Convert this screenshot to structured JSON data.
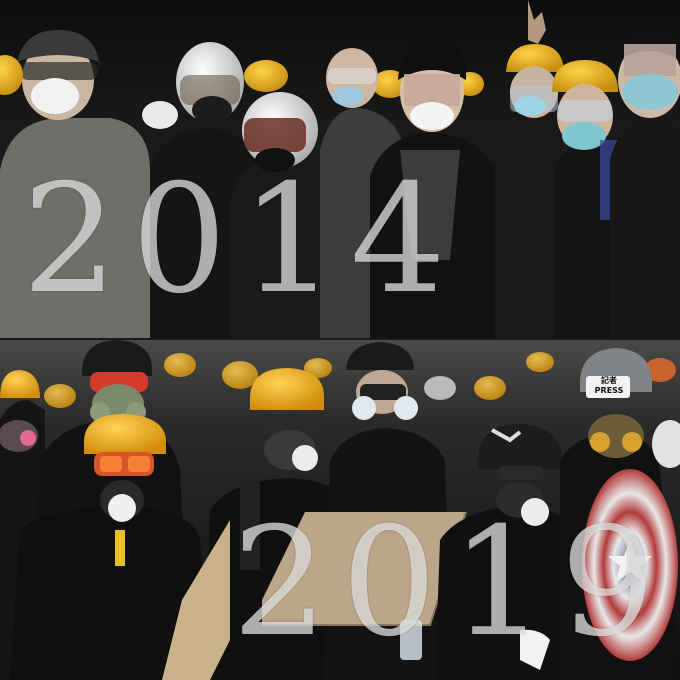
{
  "panels": [
    {
      "id": "top",
      "year_label": "2014",
      "description_colors": {
        "background": "#161616",
        "helmet_yellow": "#e9b21a",
        "helmet_white": "#e6e6e6",
        "mask_blue": "#9fd3df",
        "clothing": "#1c1c1c"
      }
    },
    {
      "id": "bottom",
      "year_label": "2019",
      "press_label": "記者 PRESS",
      "description_colors": {
        "helmet_yellow": "#f3b016",
        "goggle_orange": "#e0572b",
        "clothing": "#111111",
        "shield_red": "#b23b3b",
        "board": "#c9b28a"
      }
    }
  ],
  "colors": {
    "year_text": "rgba(235,235,235,0.72)",
    "divider": "#1a1a1a"
  }
}
